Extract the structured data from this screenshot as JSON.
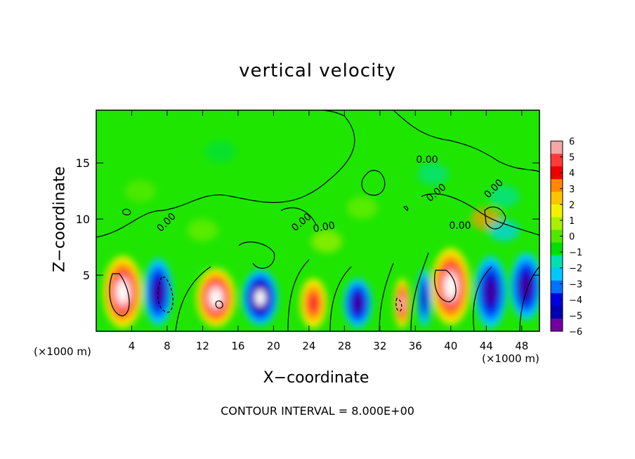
{
  "chart_data": {
    "type": "heatmap",
    "title": "vertical velocity",
    "xlabel": "X−coordinate",
    "ylabel": "Z−coordinate",
    "x_unit": "(×1000 m)",
    "z_unit": "(×1000 m)",
    "xlim": [
      0,
      50
    ],
    "ylim": [
      0,
      19.7
    ],
    "x_ticks": [
      "4",
      "8",
      "12",
      "16",
      "20",
      "24",
      "28",
      "32",
      "36",
      "40",
      "44",
      "48"
    ],
    "y_ticks": [
      "5",
      "10",
      "15"
    ],
    "colorbar": {
      "labels": [
        "6",
        "5",
        "4",
        "3",
        "2",
        "1",
        "0",
        "−1",
        "−2",
        "−3",
        "−4",
        "−5",
        "−6"
      ],
      "range": [
        -6,
        6
      ],
      "colors": [
        "#f5a6a6",
        "#ff3a3a",
        "#ee0000",
        "#ff8800",
        "#ffc400",
        "#f2f200",
        "#a8f000",
        "#50e800",
        "#00e000",
        "#00e0b0",
        "#00c8ff",
        "#0070ff",
        "#0000e0",
        "#0000b0",
        "#7000a0"
      ]
    },
    "contour_labels": [
      "0.00",
      "0.00",
      "0.00",
      "0.00",
      "0.00",
      "0.00",
      "0.00"
    ],
    "features": [
      {
        "x": 3.0,
        "z": 3.5,
        "value": 6,
        "rx": 2.2,
        "rz": 3.2
      },
      {
        "x": 7.0,
        "z": 3.5,
        "value": -5,
        "rx": 1.6,
        "rz": 3.0
      },
      {
        "x": 13.5,
        "z": 3.0,
        "value": 6,
        "rx": 2.2,
        "rz": 2.6
      },
      {
        "x": 18.5,
        "z": 3.0,
        "value": -6,
        "rx": 2.0,
        "rz": 2.5
      },
      {
        "x": 24.5,
        "z": 2.5,
        "value": 4,
        "rx": 1.5,
        "rz": 2.2
      },
      {
        "x": 29.5,
        "z": 2.5,
        "value": -5,
        "rx": 1.6,
        "rz": 2.2
      },
      {
        "x": 34.5,
        "z": 2.5,
        "value": 5,
        "rx": 0.9,
        "rz": 2.2
      },
      {
        "x": 37.0,
        "z": 3.0,
        "value": -4,
        "rx": 0.8,
        "rz": 2.6
      },
      {
        "x": 40.0,
        "z": 4.0,
        "value": 6,
        "rx": 2.2,
        "rz": 3.4
      },
      {
        "x": 44.5,
        "z": 3.5,
        "value": -5,
        "rx": 1.8,
        "rz": 3.2
      },
      {
        "x": 48.5,
        "z": 4.0,
        "value": -5,
        "rx": 1.8,
        "rz": 3.0
      }
    ]
  },
  "footnote": "CONTOUR INTERVAL =  8.000E+00"
}
